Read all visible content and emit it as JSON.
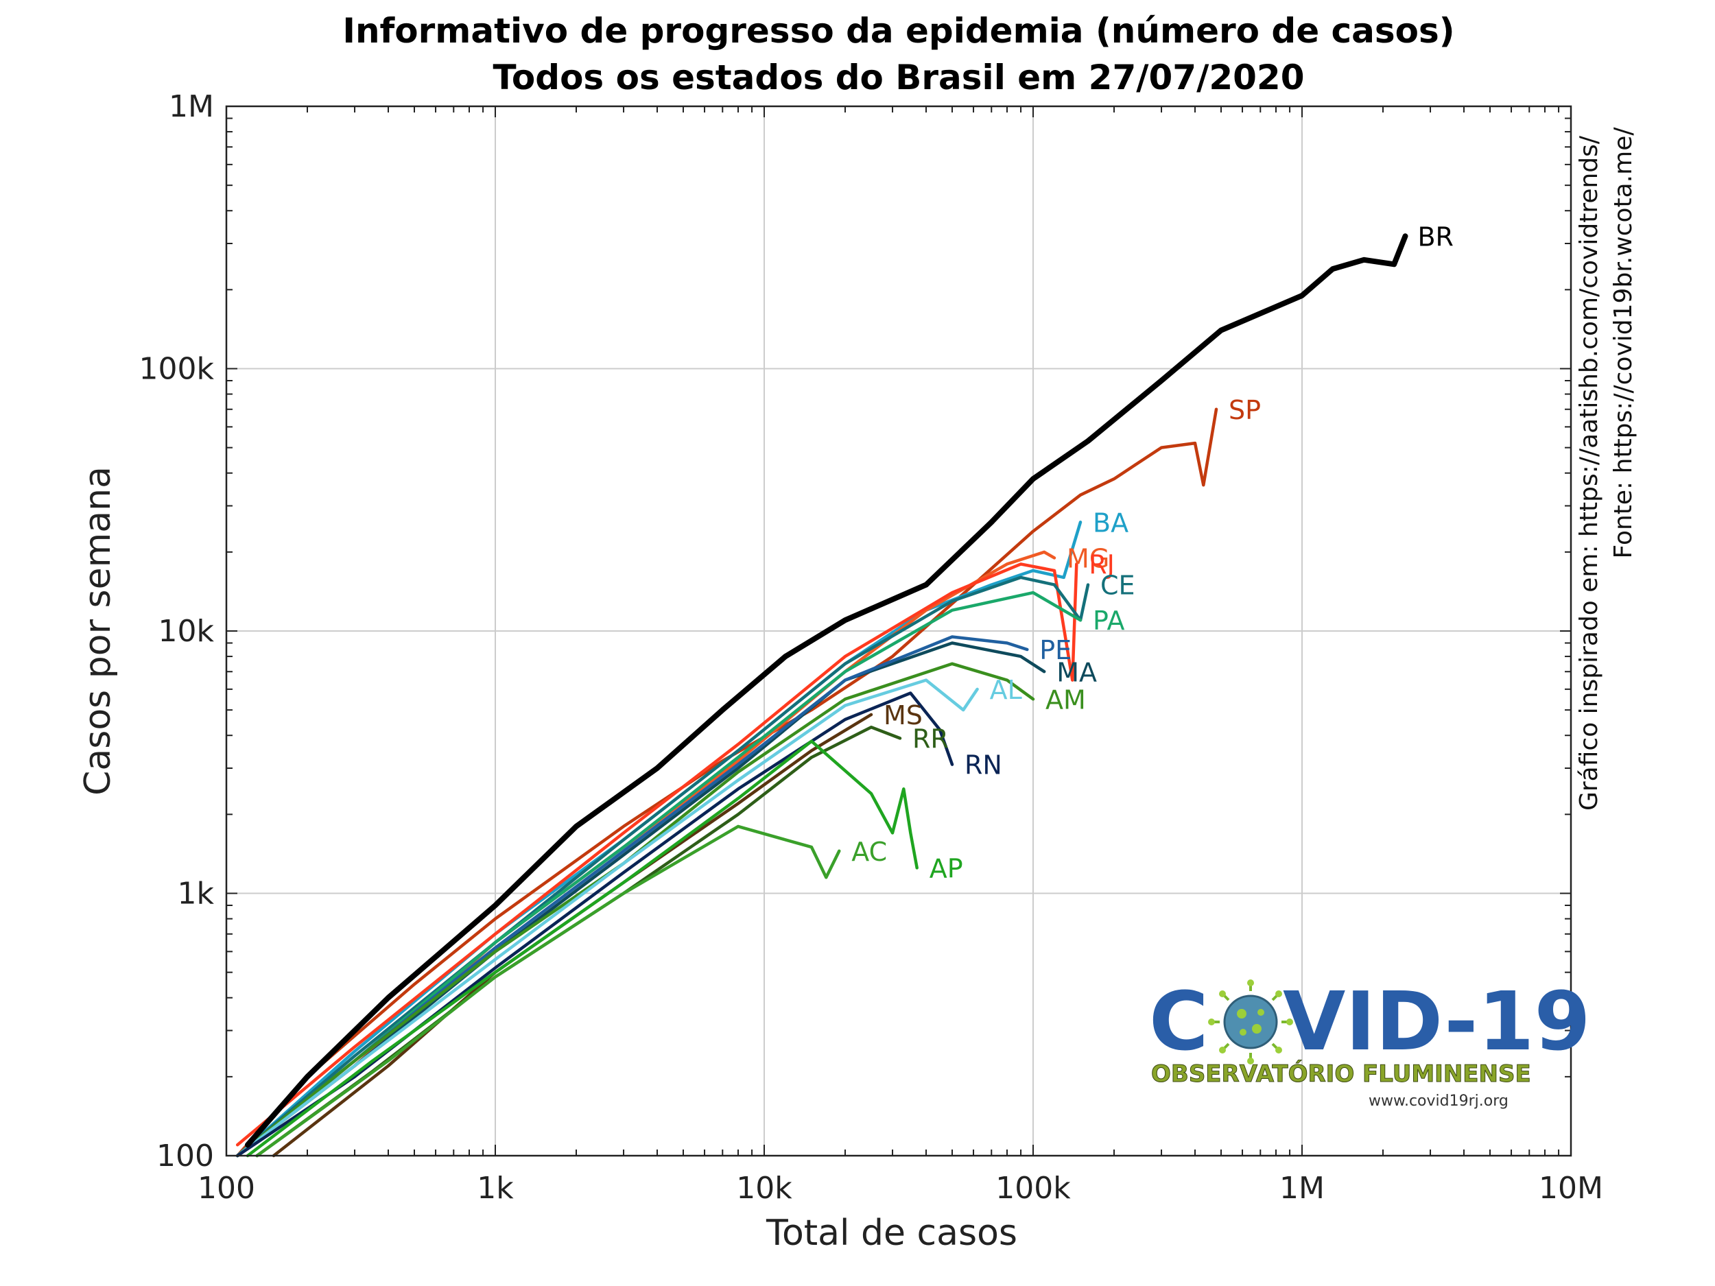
{
  "chart_data": {
    "type": "line",
    "title": "Informativo de progresso da epidemia (número de casos)",
    "subtitle": "Todos os estados do Brasil em 27/07/2020",
    "xlabel": "Total de casos",
    "ylabel": "Casos por semana",
    "xscale": "log",
    "yscale": "log",
    "xlim": [
      100,
      10000000
    ],
    "ylim": [
      100,
      1000000
    ],
    "x_tick_labels": [
      "100",
      "1k",
      "10k",
      "100k",
      "1M",
      "10M"
    ],
    "y_tick_labels": [
      "100",
      "1k",
      "10k",
      "100k",
      "1M"
    ],
    "grid": true,
    "side_notes": [
      "Gráfico inspirado em: https://aatishb.com/covidtrends/",
      "Fonte: https://covid19br.wcota.me/"
    ],
    "series": [
      {
        "name": "BR",
        "color": "#000000",
        "x": [
          120,
          200,
          400,
          1000,
          2000,
          4000,
          7000,
          12000,
          20000,
          40000,
          70000,
          100000,
          160000,
          300000,
          500000,
          1000000,
          1300000,
          1700000,
          2200000,
          2420000
        ],
        "y": [
          110,
          200,
          400,
          900,
          1800,
          3000,
          5000,
          8000,
          11000,
          15000,
          26000,
          38000,
          53000,
          90000,
          140000,
          190000,
          240000,
          260000,
          250000,
          320000
        ]
      },
      {
        "name": "SP",
        "color": "#c33a0e",
        "x": [
          110,
          200,
          500,
          1000,
          3000,
          7000,
          15000,
          30000,
          60000,
          100000,
          150000,
          200000,
          300000,
          400000,
          430000,
          480000
        ],
        "y": [
          100,
          200,
          450,
          800,
          1800,
          3200,
          5000,
          8000,
          15000,
          24000,
          33000,
          38000,
          50000,
          52000,
          36000,
          70000
        ]
      },
      {
        "name": "BA",
        "color": "#1ea0c8",
        "x": [
          110,
          300,
          1000,
          3000,
          8000,
          20000,
          40000,
          70000,
          100000,
          130000,
          150000
        ],
        "y": [
          100,
          250,
          700,
          1600,
          3500,
          7500,
          12000,
          15000,
          17000,
          16000,
          26000
        ]
      },
      {
        "name": "MG",
        "color": "#f05a24",
        "x": [
          110,
          300,
          1000,
          3000,
          8000,
          20000,
          40000,
          80000,
          110000,
          120000
        ],
        "y": [
          100,
          220,
          650,
          1500,
          3200,
          7000,
          12000,
          18000,
          20000,
          19000
        ]
      },
      {
        "name": "RJ",
        "color": "#ff3b1f",
        "x": [
          110,
          300,
          1000,
          3000,
          8000,
          20000,
          50000,
          90000,
          120000,
          140000,
          145000
        ],
        "y": [
          110,
          260,
          700,
          1700,
          3700,
          8000,
          14000,
          18000,
          17000,
          6500,
          18000
        ]
      },
      {
        "name": "CE",
        "color": "#14707a",
        "x": [
          110,
          300,
          1000,
          3000,
          8000,
          20000,
          50000,
          90000,
          120000,
          150000,
          160000
        ],
        "y": [
          100,
          240,
          650,
          1600,
          3500,
          7500,
          13000,
          16000,
          15000,
          11000,
          15000
        ]
      },
      {
        "name": "PA",
        "color": "#1aa86a",
        "x": [
          110,
          300,
          1000,
          3000,
          8000,
          20000,
          50000,
          100000,
          150000
        ],
        "y": [
          100,
          230,
          650,
          1500,
          3300,
          7000,
          12000,
          14000,
          11000
        ]
      },
      {
        "name": "MA",
        "color": "#0e4a5c",
        "x": [
          110,
          300,
          1000,
          3000,
          8000,
          20000,
          50000,
          90000,
          110000
        ],
        "y": [
          100,
          220,
          600,
          1400,
          3000,
          6500,
          9000,
          8000,
          7000
        ]
      },
      {
        "name": "PE",
        "color": "#2060a0",
        "x": [
          110,
          300,
          1000,
          3000,
          8000,
          20000,
          50000,
          80000,
          95000
        ],
        "y": [
          100,
          230,
          620,
          1450,
          3100,
          6500,
          9500,
          9000,
          8500
        ]
      },
      {
        "name": "AM",
        "color": "#3a8f1e",
        "x": [
          110,
          300,
          1000,
          3000,
          8000,
          20000,
          50000,
          80000,
          100000
        ],
        "y": [
          100,
          230,
          600,
          1300,
          2900,
          5500,
          7500,
          6500,
          5500
        ]
      },
      {
        "name": "AL",
        "color": "#66cce0",
        "x": [
          110,
          300,
          1000,
          3000,
          8000,
          20000,
          40000,
          55000,
          62000
        ],
        "y": [
          100,
          220,
          560,
          1300,
          2700,
          5200,
          6500,
          5000,
          6000
        ]
      },
      {
        "name": "RN",
        "color": "#0a2455",
        "x": [
          110,
          300,
          1000,
          3000,
          8000,
          20000,
          35000,
          45000,
          50000
        ],
        "y": [
          100,
          200,
          520,
          1200,
          2500,
          4600,
          5800,
          4200,
          3100
        ]
      },
      {
        "name": "MS",
        "color": "#5a3410",
        "x": [
          150,
          400,
          1000,
          3000,
          8000,
          15000,
          25000
        ],
        "y": [
          100,
          220,
          500,
          1100,
          2200,
          3500,
          4800
        ]
      },
      {
        "name": "RR",
        "color": "#2e5e18",
        "x": [
          130,
          350,
          1000,
          3000,
          8000,
          15000,
          25000,
          32000
        ],
        "y": [
          100,
          210,
          480,
          1000,
          2000,
          3300,
          4300,
          3900
        ]
      },
      {
        "name": "AC",
        "color": "#3aa02a",
        "x": [
          130,
          400,
          1000,
          3000,
          8000,
          12000,
          15000,
          17000,
          19000
        ],
        "y": [
          100,
          230,
          480,
          1000,
          1800,
          1600,
          1500,
          1150,
          1450
        ]
      },
      {
        "name": "AP",
        "color": "#1fa520",
        "x": [
          120,
          350,
          1000,
          3000,
          8000,
          15000,
          25000,
          30000,
          33000,
          35000,
          37000
        ],
        "y": [
          100,
          230,
          500,
          1100,
          2300,
          3800,
          2400,
          1700,
          2500,
          1700,
          1250
        ]
      }
    ]
  }
}
